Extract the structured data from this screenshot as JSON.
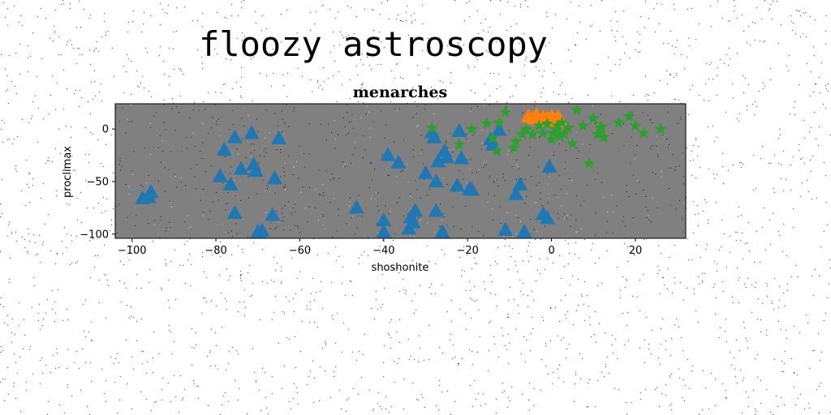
{
  "figure": {
    "suptitle": "floozy astroscopy"
  },
  "colors": {
    "plot_background": "#808080",
    "series_1": "#1f77b4",
    "series_2": "#ff7f0e",
    "series_3": "#2ca02c"
  },
  "chart_data": {
    "type": "scatter",
    "title": "menarches",
    "xlabel": "shoshonite",
    "ylabel": "proclimax",
    "xlim": [
      -104,
      32
    ],
    "ylim": [
      -104,
      24
    ],
    "xticks": [
      -100,
      -80,
      -60,
      -40,
      -20,
      0,
      20
    ],
    "yticks": [
      0,
      -50,
      -100
    ],
    "grid": false,
    "legend": false,
    "series": [
      {
        "marker": "triangle",
        "color": "#1f77b4",
        "x": [
          -97.5,
          -96,
          -95.5,
          -79,
          -78,
          -76.5,
          -75.5,
          -75.5,
          -74,
          -71.5,
          -71,
          -70.5,
          -70,
          -69,
          -66.5,
          -66,
          -65,
          -46.5,
          -40,
          -40,
          -39,
          -36.5,
          -34,
          -33.5,
          -33,
          -32.5,
          -30,
          -28.5,
          -28,
          -27.5,
          -27.5,
          -27,
          -26,
          -25.5,
          -25,
          -22.5,
          -22,
          -21.5,
          -19.5,
          -19,
          -14.5,
          -14,
          -12.5,
          -11,
          -8.5,
          -7.5,
          -6.5,
          -2,
          -1,
          -0.5
        ],
        "y": [
          -66,
          -65,
          -60,
          -45,
          -20,
          -53,
          -80,
          -8,
          -38,
          -4,
          -34,
          -40,
          -98,
          -97,
          -82,
          -47,
          -9,
          -75,
          -87,
          -98,
          -25,
          -32,
          -95,
          -84,
          -89,
          -78,
          -42,
          -3,
          -8,
          -50,
          -78,
          -31,
          -98,
          -21,
          -27,
          -54,
          -2,
          -28,
          -57,
          -58,
          -10,
          -15,
          -1,
          -96,
          -62,
          -53,
          -98,
          -81,
          -85,
          -36
        ]
      },
      {
        "marker": "triangle",
        "color": "#ff7f0e",
        "x": [
          -5.5,
          -4.5,
          -3.5,
          -3,
          -2,
          -1.5,
          -1,
          0,
          0.5,
          1,
          1.5,
          2
        ],
        "y": [
          12,
          10,
          13,
          9,
          11,
          8,
          10,
          12,
          9,
          7,
          11,
          9
        ]
      },
      {
        "marker": "star",
        "color": "#2ca02c",
        "x": [
          -28.5,
          -22,
          -19,
          -15.5,
          -14,
          -13,
          -12.5,
          -11,
          -9,
          -8.5,
          -7,
          -6,
          -4.5,
          -3,
          -2,
          -1,
          0,
          0.5,
          1,
          1.5,
          2,
          2.5,
          3,
          4,
          5,
          6,
          7.5,
          9,
          10,
          11,
          11.5,
          12,
          12.5,
          16,
          18.5,
          20,
          22,
          26
        ],
        "y": [
          1,
          -15,
          0,
          5,
          -9,
          -21,
          6,
          16,
          -18,
          -12,
          -5,
          0,
          -5,
          3,
          -4,
          5,
          -10,
          -4,
          0,
          3,
          -7,
          6,
          -5,
          1,
          -14,
          18,
          3,
          -33,
          10,
          -5,
          1,
          2,
          -8,
          6,
          12,
          3,
          -4,
          0
        ]
      }
    ]
  }
}
